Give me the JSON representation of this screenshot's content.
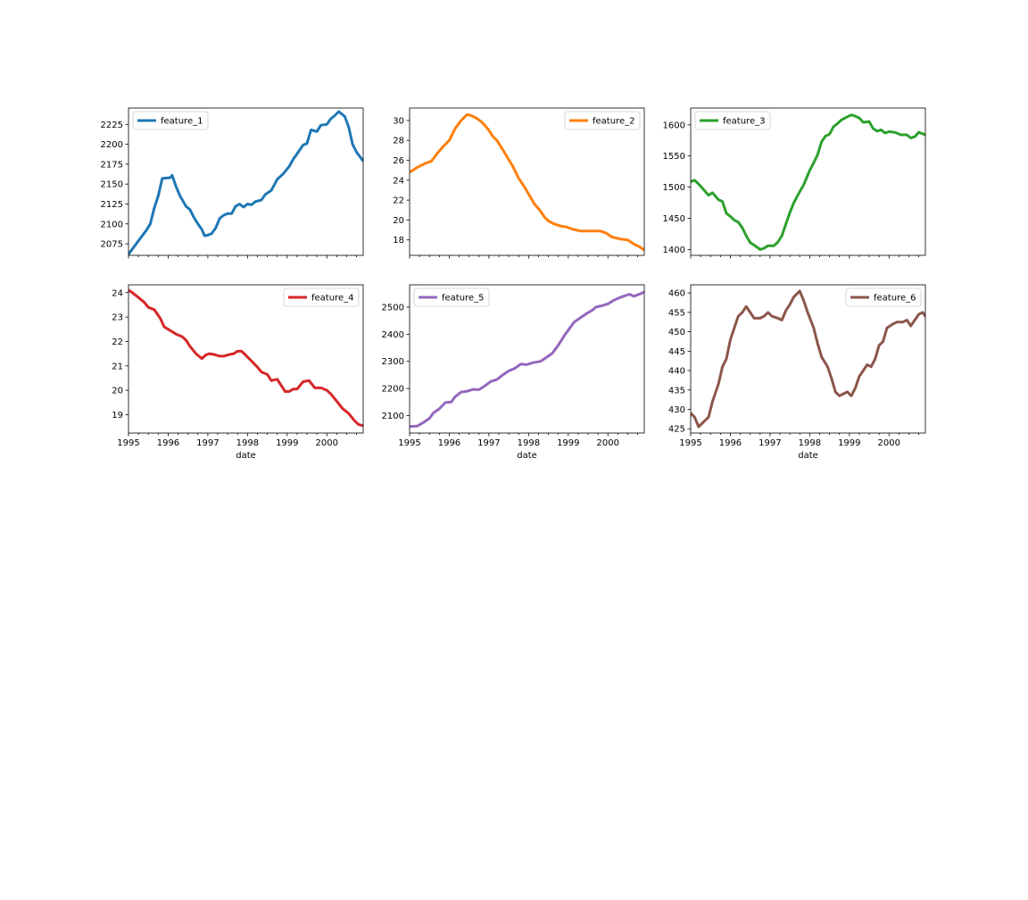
{
  "figure": {
    "background": "#ffffff"
  },
  "chart_data": [
    {
      "type": "line",
      "series": [
        {
          "name": "feature_1",
          "color": "#1f77b4"
        }
      ],
      "x_years": [
        1995,
        1996,
        1997,
        1998,
        1999,
        2000
      ],
      "xlim": [
        1995.0,
        2000.9167
      ],
      "yticks": [
        2075,
        2100,
        2125,
        2150,
        2175,
        2200,
        2225
      ],
      "ylim": [
        2060.5,
        2245.5
      ],
      "show_xlabels": false,
      "xlabel": "",
      "legend": "upper left",
      "points": [
        [
          1995.0,
          2062
        ],
        [
          1995.15,
          2072
        ],
        [
          1995.3,
          2082
        ],
        [
          1995.45,
          2092
        ],
        [
          1995.55,
          2100
        ],
        [
          1995.65,
          2120
        ],
        [
          1995.75,
          2135
        ],
        [
          1995.85,
          2157
        ],
        [
          1996.05,
          2158
        ],
        [
          1996.1,
          2161
        ],
        [
          1996.2,
          2147
        ],
        [
          1996.3,
          2135
        ],
        [
          1996.45,
          2122
        ],
        [
          1996.55,
          2118
        ],
        [
          1996.65,
          2108
        ],
        [
          1996.75,
          2100
        ],
        [
          1996.85,
          2093
        ],
        [
          1996.92,
          2085
        ],
        [
          1997.0,
          2086
        ],
        [
          1997.1,
          2088
        ],
        [
          1997.2,
          2095
        ],
        [
          1997.3,
          2107
        ],
        [
          1997.4,
          2111
        ],
        [
          1997.5,
          2113
        ],
        [
          1997.6,
          2113
        ],
        [
          1997.7,
          2122
        ],
        [
          1997.8,
          2125
        ],
        [
          1997.9,
          2121
        ],
        [
          1998.0,
          2125
        ],
        [
          1998.1,
          2124
        ],
        [
          1998.2,
          2128
        ],
        [
          1998.35,
          2130
        ],
        [
          1998.45,
          2137
        ],
        [
          1998.6,
          2142
        ],
        [
          1998.75,
          2156
        ],
        [
          1998.9,
          2163
        ],
        [
          1999.05,
          2172
        ],
        [
          1999.15,
          2181
        ],
        [
          1999.25,
          2188
        ],
        [
          1999.4,
          2199
        ],
        [
          1999.5,
          2201
        ],
        [
          1999.6,
          2218
        ],
        [
          1999.75,
          2216
        ],
        [
          1999.85,
          2224
        ],
        [
          2000.0,
          2225
        ],
        [
          2000.1,
          2232
        ],
        [
          2000.2,
          2236
        ],
        [
          2000.3,
          2241
        ],
        [
          2000.45,
          2235
        ],
        [
          2000.55,
          2222
        ],
        [
          2000.65,
          2200
        ],
        [
          2000.75,
          2190
        ],
        [
          2000.9167,
          2179
        ]
      ]
    },
    {
      "type": "line",
      "series": [
        {
          "name": "feature_2",
          "color": "#ff7f0e"
        }
      ],
      "x_years": [
        1995,
        1996,
        1997,
        1998,
        1999,
        2000
      ],
      "xlim": [
        1995.0,
        2000.9167
      ],
      "yticks": [
        18,
        20,
        22,
        24,
        26,
        28,
        30
      ],
      "ylim": [
        16.45,
        31.25
      ],
      "show_xlabels": false,
      "xlabel": "",
      "legend": "upper right",
      "points": [
        [
          1995.0,
          24.8
        ],
        [
          1995.2,
          25.3
        ],
        [
          1995.4,
          25.7
        ],
        [
          1995.55,
          25.9
        ],
        [
          1995.7,
          26.7
        ],
        [
          1995.85,
          27.4
        ],
        [
          1996.0,
          28.0
        ],
        [
          1996.15,
          29.2
        ],
        [
          1996.3,
          30.0
        ],
        [
          1996.45,
          30.6
        ],
        [
          1996.55,
          30.5
        ],
        [
          1996.7,
          30.2
        ],
        [
          1996.8,
          29.9
        ],
        [
          1996.9,
          29.5
        ],
        [
          1997.0,
          29.0
        ],
        [
          1997.1,
          28.4
        ],
        [
          1997.2,
          28.0
        ],
        [
          1997.3,
          27.4
        ],
        [
          1997.45,
          26.4
        ],
        [
          1997.6,
          25.4
        ],
        [
          1997.75,
          24.2
        ],
        [
          1997.9,
          23.3
        ],
        [
          1998.0,
          22.6
        ],
        [
          1998.15,
          21.6
        ],
        [
          1998.3,
          20.9
        ],
        [
          1998.4,
          20.3
        ],
        [
          1998.5,
          19.9
        ],
        [
          1998.65,
          19.6
        ],
        [
          1998.8,
          19.4
        ],
        [
          1998.95,
          19.3
        ],
        [
          1999.1,
          19.1
        ],
        [
          1999.3,
          18.9
        ],
        [
          1999.5,
          18.9
        ],
        [
          1999.65,
          18.9
        ],
        [
          1999.8,
          18.9
        ],
        [
          1999.95,
          18.7
        ],
        [
          2000.1,
          18.3
        ],
        [
          2000.3,
          18.1
        ],
        [
          2000.5,
          18.0
        ],
        [
          2000.65,
          17.6
        ],
        [
          2000.8,
          17.3
        ],
        [
          2000.9167,
          17.0
        ]
      ]
    },
    {
      "type": "line",
      "series": [
        {
          "name": "feature_3",
          "color": "#2ca02c"
        }
      ],
      "x_years": [
        1995,
        1996,
        1997,
        1998,
        1999,
        2000
      ],
      "xlim": [
        1995.0,
        2000.9167
      ],
      "yticks": [
        1400,
        1450,
        1500,
        1550,
        1600
      ],
      "ylim": [
        1390.5,
        1627.0
      ],
      "show_xlabels": false,
      "xlabel": "",
      "legend": "upper left",
      "points": [
        [
          1995.0,
          1509
        ],
        [
          1995.1,
          1511
        ],
        [
          1995.2,
          1505
        ],
        [
          1995.3,
          1498
        ],
        [
          1995.45,
          1487
        ],
        [
          1995.55,
          1491
        ],
        [
          1995.7,
          1480
        ],
        [
          1995.8,
          1477
        ],
        [
          1995.9,
          1458
        ],
        [
          1996.0,
          1453
        ],
        [
          1996.1,
          1447
        ],
        [
          1996.2,
          1444
        ],
        [
          1996.3,
          1435
        ],
        [
          1996.4,
          1422
        ],
        [
          1996.5,
          1411
        ],
        [
          1996.6,
          1407
        ],
        [
          1996.75,
          1400
        ],
        [
          1996.85,
          1402
        ],
        [
          1996.95,
          1406
        ],
        [
          1997.1,
          1406
        ],
        [
          1997.2,
          1412
        ],
        [
          1997.3,
          1422
        ],
        [
          1997.4,
          1441
        ],
        [
          1997.5,
          1459
        ],
        [
          1997.6,
          1475
        ],
        [
          1997.7,
          1487
        ],
        [
          1997.85,
          1504
        ],
        [
          1998.0,
          1527
        ],
        [
          1998.1,
          1539
        ],
        [
          1998.2,
          1552
        ],
        [
          1998.3,
          1573
        ],
        [
          1998.4,
          1582
        ],
        [
          1998.5,
          1585
        ],
        [
          1998.6,
          1597
        ],
        [
          1998.7,
          1602
        ],
        [
          1998.8,
          1608
        ],
        [
          1998.95,
          1613
        ],
        [
          1999.05,
          1616
        ],
        [
          1999.15,
          1614
        ],
        [
          1999.25,
          1611
        ],
        [
          1999.35,
          1604
        ],
        [
          1999.5,
          1605
        ],
        [
          1999.6,
          1594
        ],
        [
          1999.7,
          1590
        ],
        [
          1999.8,
          1592
        ],
        [
          1999.9,
          1587
        ],
        [
          2000.0,
          1589
        ],
        [
          2000.15,
          1588
        ],
        [
          2000.3,
          1584
        ],
        [
          2000.45,
          1584
        ],
        [
          2000.55,
          1579
        ],
        [
          2000.65,
          1581
        ],
        [
          2000.75,
          1588
        ],
        [
          2000.9167,
          1584
        ]
      ]
    },
    {
      "type": "line",
      "series": [
        {
          "name": "feature_4",
          "color": "#d62728"
        }
      ],
      "x_years": [
        1995,
        1996,
        1997,
        1998,
        1999,
        2000
      ],
      "xlim": [
        1995.0,
        2000.9167
      ],
      "yticks": [
        19,
        20,
        21,
        22,
        23,
        24
      ],
      "ylim": [
        18.25,
        24.32
      ],
      "show_xlabels": true,
      "xlabel": "date",
      "legend": "upper right",
      "points": [
        [
          1995.0,
          24.1
        ],
        [
          1995.1,
          24.0
        ],
        [
          1995.25,
          23.8
        ],
        [
          1995.4,
          23.6
        ],
        [
          1995.5,
          23.4
        ],
        [
          1995.65,
          23.3
        ],
        [
          1995.8,
          22.95
        ],
        [
          1995.9,
          22.6
        ],
        [
          1996.0,
          22.5
        ],
        [
          1996.1,
          22.4
        ],
        [
          1996.2,
          22.3
        ],
        [
          1996.35,
          22.2
        ],
        [
          1996.45,
          22.05
        ],
        [
          1996.55,
          21.8
        ],
        [
          1996.7,
          21.5
        ],
        [
          1996.85,
          21.3
        ],
        [
          1996.95,
          21.45
        ],
        [
          1997.05,
          21.5
        ],
        [
          1997.2,
          21.45
        ],
        [
          1997.3,
          21.4
        ],
        [
          1997.4,
          21.4
        ],
        [
          1997.5,
          21.45
        ],
        [
          1997.65,
          21.5
        ],
        [
          1997.75,
          21.6
        ],
        [
          1997.85,
          21.6
        ],
        [
          1997.95,
          21.45
        ],
        [
          1998.1,
          21.2
        ],
        [
          1998.25,
          20.95
        ],
        [
          1998.35,
          20.75
        ],
        [
          1998.5,
          20.65
        ],
        [
          1998.6,
          20.4
        ],
        [
          1998.75,
          20.45
        ],
        [
          1998.85,
          20.2
        ],
        [
          1998.95,
          19.95
        ],
        [
          1999.05,
          19.95
        ],
        [
          1999.15,
          20.05
        ],
        [
          1999.25,
          20.05
        ],
        [
          1999.4,
          20.35
        ],
        [
          1999.55,
          20.4
        ],
        [
          1999.7,
          20.1
        ],
        [
          1999.85,
          20.1
        ],
        [
          2000.0,
          20.0
        ],
        [
          2000.1,
          19.85
        ],
        [
          2000.25,
          19.55
        ],
        [
          2000.4,
          19.25
        ],
        [
          2000.55,
          19.05
        ],
        [
          2000.7,
          18.75
        ],
        [
          2000.8,
          18.6
        ],
        [
          2000.9167,
          18.55
        ]
      ]
    },
    {
      "type": "line",
      "series": [
        {
          "name": "feature_5",
          "color": "#9467bd"
        }
      ],
      "x_years": [
        1995,
        1996,
        1997,
        1998,
        1999,
        2000
      ],
      "xlim": [
        1995.0,
        2000.9167
      ],
      "yticks": [
        2100,
        2200,
        2300,
        2400,
        2500
      ],
      "ylim": [
        2036.0,
        2582.0
      ],
      "show_xlabels": true,
      "xlabel": "date",
      "legend": "upper left",
      "points": [
        [
          1995.0,
          2060
        ],
        [
          1995.2,
          2062
        ],
        [
          1995.35,
          2075
        ],
        [
          1995.5,
          2090
        ],
        [
          1995.6,
          2110
        ],
        [
          1995.75,
          2125
        ],
        [
          1995.9,
          2148
        ],
        [
          1996.05,
          2150
        ],
        [
          1996.15,
          2170
        ],
        [
          1996.3,
          2187
        ],
        [
          1996.45,
          2190
        ],
        [
          1996.6,
          2197
        ],
        [
          1996.75,
          2196
        ],
        [
          1996.9,
          2210
        ],
        [
          1997.05,
          2226
        ],
        [
          1997.2,
          2233
        ],
        [
          1997.35,
          2250
        ],
        [
          1997.5,
          2265
        ],
        [
          1997.65,
          2274
        ],
        [
          1997.8,
          2290
        ],
        [
          1997.95,
          2288
        ],
        [
          1998.1,
          2295
        ],
        [
          1998.3,
          2300
        ],
        [
          1998.45,
          2315
        ],
        [
          1998.6,
          2330
        ],
        [
          1998.75,
          2360
        ],
        [
          1998.9,
          2395
        ],
        [
          1999.05,
          2425
        ],
        [
          1999.15,
          2445
        ],
        [
          1999.3,
          2460
        ],
        [
          1999.45,
          2475
        ],
        [
          1999.6,
          2488
        ],
        [
          1999.7,
          2500
        ],
        [
          1999.85,
          2505
        ],
        [
          2000.0,
          2512
        ],
        [
          2000.15,
          2525
        ],
        [
          2000.3,
          2535
        ],
        [
          2000.45,
          2543
        ],
        [
          2000.55,
          2547
        ],
        [
          2000.65,
          2540
        ],
        [
          2000.75,
          2545
        ],
        [
          2000.9167,
          2555
        ]
      ]
    },
    {
      "type": "line",
      "series": [
        {
          "name": "feature_6",
          "color": "#8c564b"
        }
      ],
      "x_years": [
        1995,
        1996,
        1997,
        1998,
        1999,
        2000
      ],
      "xlim": [
        1995.0,
        2000.9167
      ],
      "yticks": [
        425,
        430,
        435,
        440,
        445,
        450,
        455,
        460
      ],
      "ylim": [
        423.9,
        462.1
      ],
      "show_xlabels": true,
      "xlabel": "date",
      "legend": "upper right",
      "points": [
        [
          1995.0,
          429
        ],
        [
          1995.1,
          428
        ],
        [
          1995.2,
          425.5
        ],
        [
          1995.3,
          426.5
        ],
        [
          1995.45,
          428
        ],
        [
          1995.55,
          432
        ],
        [
          1995.7,
          436.5
        ],
        [
          1995.8,
          441
        ],
        [
          1995.9,
          443
        ],
        [
          1996.0,
          448
        ],
        [
          1996.1,
          451
        ],
        [
          1996.2,
          454
        ],
        [
          1996.3,
          455
        ],
        [
          1996.4,
          456.5
        ],
        [
          1996.5,
          455
        ],
        [
          1996.6,
          453.5
        ],
        [
          1996.75,
          453.5
        ],
        [
          1996.85,
          454
        ],
        [
          1996.95,
          455
        ],
        [
          1997.05,
          454
        ],
        [
          1997.2,
          453.5
        ],
        [
          1997.3,
          453
        ],
        [
          1997.4,
          455.5
        ],
        [
          1997.5,
          457
        ],
        [
          1997.6,
          459
        ],
        [
          1997.75,
          460.5
        ],
        [
          1997.85,
          458
        ],
        [
          1997.95,
          455
        ],
        [
          1998.1,
          451
        ],
        [
          1998.2,
          447
        ],
        [
          1998.3,
          443.5
        ],
        [
          1998.45,
          441
        ],
        [
          1998.55,
          438
        ],
        [
          1998.65,
          434.5
        ],
        [
          1998.75,
          433.5
        ],
        [
          1998.85,
          434
        ],
        [
          1998.95,
          434.5
        ],
        [
          1999.05,
          433.5
        ],
        [
          1999.15,
          435.5
        ],
        [
          1999.25,
          438.5
        ],
        [
          1999.35,
          440
        ],
        [
          1999.45,
          441.5
        ],
        [
          1999.55,
          441
        ],
        [
          1999.65,
          443
        ],
        [
          1999.75,
          446.5
        ],
        [
          1999.85,
          447.5
        ],
        [
          1999.95,
          451
        ],
        [
          2000.1,
          452
        ],
        [
          2000.2,
          452.5
        ],
        [
          2000.35,
          452.5
        ],
        [
          2000.45,
          453
        ],
        [
          2000.55,
          451.5
        ],
        [
          2000.65,
          453
        ],
        [
          2000.75,
          454.5
        ],
        [
          2000.85,
          455
        ],
        [
          2000.9167,
          454
        ]
      ]
    }
  ]
}
